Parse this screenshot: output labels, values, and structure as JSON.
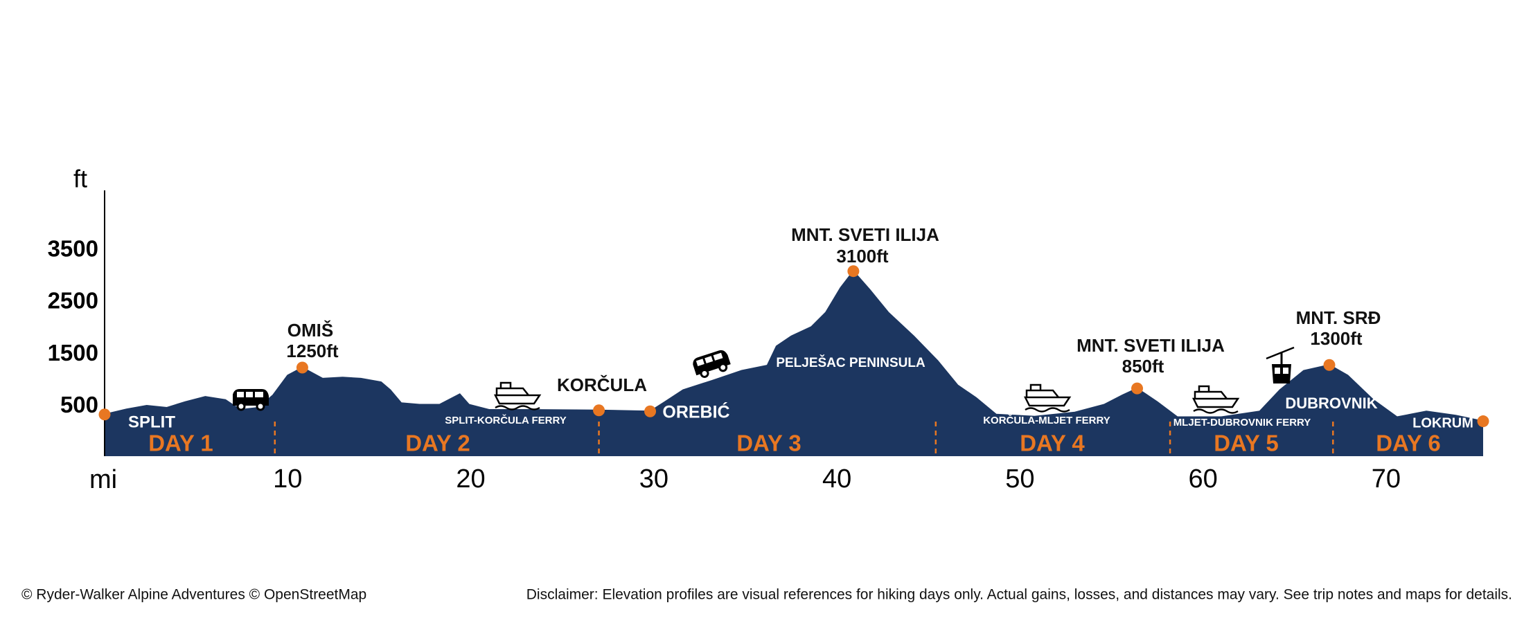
{
  "chart_data": {
    "type": "area",
    "y_unit": "ft",
    "x_unit": "mi",
    "color": "#1c3660",
    "marker_color": "#e87722",
    "xlim": [
      0,
      75.3
    ],
    "ylim": [
      -450,
      4650
    ],
    "xticks": [
      10,
      20,
      30,
      40,
      50,
      60,
      70
    ],
    "yticks": [
      500,
      1500,
      2500,
      3500
    ],
    "x": [
      0,
      1.2,
      2.3,
      3.4,
      4.4,
      5.5,
      6.6,
      7.4,
      8.4,
      9.2,
      10.0,
      10.8,
      11.9,
      13.0,
      14.0,
      15.1,
      15.6,
      16.2,
      17.2,
      18.3,
      19.4,
      19.9,
      21.0,
      23.1,
      27.0,
      29.8,
      30.6,
      31.6,
      33.2,
      34.8,
      36.2,
      36.7,
      37.5,
      38.6,
      39.4,
      40.2,
      40.9,
      41.8,
      42.8,
      44.2,
      45.5,
      46.6,
      47.6,
      48.7,
      50.8,
      53.0,
      54.6,
      55.6,
      56.4,
      57.5,
      58.6,
      61.0,
      63.1,
      64.2,
      65.5,
      66.9,
      67.9,
      69.3,
      70.6,
      72.2,
      73.8,
      75.3
    ],
    "values": [
      350,
      450,
      520,
      480,
      590,
      690,
      630,
      440,
      480,
      720,
      1100,
      1250,
      1040,
      1060,
      1040,
      970,
      820,
      570,
      540,
      540,
      740,
      540,
      440,
      440,
      430,
      410,
      590,
      820,
      1000,
      1190,
      1290,
      1660,
      1850,
      2030,
      2310,
      2780,
      3100,
      2740,
      2310,
      1850,
      1380,
      910,
      670,
      350,
      310,
      390,
      540,
      720,
      850,
      590,
      300,
      300,
      410,
      820,
      1190,
      1300,
      1100,
      630,
      300,
      410,
      330,
      220
    ],
    "markers": [
      {
        "name": "SPLIT",
        "x": 0,
        "y": 350
      },
      {
        "name": "OMIŠ",
        "x": 10.8,
        "y": 1250,
        "label": "1250ft"
      },
      {
        "name": "KORČULA",
        "x": 27.0,
        "y": 430
      },
      {
        "name": "OREBIĆ",
        "x": 29.8,
        "y": 410
      },
      {
        "name": "MNT. SVETI ILIJA",
        "x": 40.9,
        "y": 3100,
        "label": "3100ft"
      },
      {
        "name": "MNT. SVETI ILIJA",
        "x": 56.4,
        "y": 850,
        "label": "850ft"
      },
      {
        "name": "MNT. SRĐ",
        "x": 66.9,
        "y": 1300,
        "label": "1300ft"
      },
      {
        "name": "LOKRUM",
        "x": 75.3,
        "y": 220
      }
    ],
    "day_boundaries": [
      9.3,
      27.0,
      45.4,
      58.2,
      67.1
    ],
    "days": [
      "DAY 1",
      "DAY 2",
      "DAY 3",
      "DAY 4",
      "DAY 5",
      "DAY 6"
    ],
    "annotations": [
      "PELJEŠAC PENINSULA",
      "DUBROVNIK",
      "SPLIT-KORČULA FERRY",
      "KORČULA-MLJET FERRY",
      "MLJET-DUBROVNIK FERRY"
    ]
  },
  "footer": {
    "credit": "© Ryder-Walker Alpine Adventures © OpenStreetMap",
    "disclaimer": "Disclaimer: Elevation profiles are visual references for hiking days only. Actual gains, losses, and distances may vary. See trip notes and maps for details."
  }
}
